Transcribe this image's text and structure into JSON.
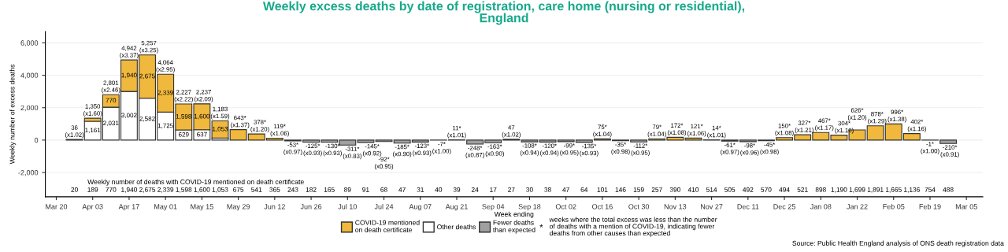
{
  "chart_data": {
    "type": "bar",
    "stacked": true,
    "title": "Weekly excess deaths by date of registration, care home (nursing or residential),\nEngland",
    "xlabel": "Week ending",
    "ylabel": "Weekly number of excess deaths",
    "categories": [
      "Mar 20",
      null,
      "Apr 03",
      null,
      "Apr 17",
      null,
      "May 01",
      null,
      "May 15",
      null,
      "May 29",
      null,
      "Jun 12",
      null,
      "Jun 26",
      null,
      "Jul 10",
      null,
      "Jul 24",
      null,
      "Aug 07",
      null,
      "Aug 21",
      null,
      "Sep 04",
      null,
      "Sep 18",
      null,
      "Oct 02",
      null,
      "Oct 16",
      null,
      "Oct 30",
      null,
      "Nov 13",
      null,
      "Nov 27",
      null,
      "Dec 11",
      null,
      "Dec 25",
      null,
      "Jan 08",
      null,
      "Jan 22",
      null,
      "Feb 05",
      null,
      "Feb 19",
      null,
      "Mar 05"
    ],
    "series": [
      {
        "name": "Other deaths",
        "color": "#ffffff",
        "values": [
          null,
          16,
          1161,
          2031,
          3002,
          2582,
          1725,
          629,
          637,
          130,
          null,
          null,
          null,
          null,
          null,
          null,
          null,
          null,
          null,
          null,
          null,
          null,
          null,
          null,
          null,
          20,
          null,
          null,
          null,
          null,
          null,
          null,
          null,
          null,
          null,
          null,
          null,
          null,
          null,
          null,
          null,
          null,
          null,
          null,
          null,
          null,
          null,
          null,
          null,
          null,
          null
        ],
        "value_labels": [
          null,
          null,
          "1,161",
          "2,031",
          "3,002",
          "2,582",
          "1,725",
          "629",
          "637",
          null,
          null,
          null,
          null,
          null,
          null,
          null,
          null,
          null,
          null,
          null,
          null,
          null,
          null,
          null,
          null,
          null,
          null,
          null,
          null,
          null,
          null,
          null,
          null,
          null,
          null,
          null,
          null,
          null,
          null,
          null,
          null,
          null,
          null,
          null,
          null,
          null,
          null,
          null,
          null,
          null,
          null
        ]
      },
      {
        "name": "COVID-19 mentioned\non death certificate",
        "color": "#f0b83c",
        "values": [
          null,
          20,
          189,
          770,
          1940,
          2675,
          2339,
          1598,
          1600,
          1053,
          643,
          378,
          119,
          null,
          null,
          null,
          null,
          null,
          null,
          null,
          null,
          null,
          11,
          null,
          null,
          27,
          null,
          null,
          null,
          null,
          75,
          null,
          null,
          79,
          172,
          121,
          14,
          null,
          null,
          null,
          150,
          327,
          467,
          304,
          626,
          878,
          996,
          402,
          null,
          null,
          null
        ],
        "value_labels": [
          null,
          null,
          null,
          "770",
          "1,940",
          "2,675",
          "2,339",
          "1,598",
          "1,600",
          "1,053",
          null,
          null,
          null,
          null,
          null,
          null,
          null,
          null,
          null,
          null,
          null,
          null,
          null,
          null,
          null,
          null,
          null,
          null,
          null,
          null,
          null,
          null,
          null,
          null,
          null,
          null,
          null,
          null,
          null,
          null,
          null,
          null,
          null,
          null,
          null,
          null,
          null,
          null,
          null,
          null,
          null
        ]
      },
      {
        "name": "Fewer deaths\nthan expected",
        "color": "#a0a0a0",
        "values": [
          null,
          null,
          null,
          null,
          null,
          null,
          null,
          null,
          null,
          null,
          null,
          null,
          null,
          -53,
          -125,
          -130,
          -311,
          -145,
          -92,
          -185,
          -123,
          -7,
          null,
          -248,
          -163,
          null,
          -108,
          -120,
          -99,
          -135,
          null,
          -35,
          -112,
          null,
          null,
          null,
          null,
          -61,
          -98,
          -45,
          null,
          null,
          null,
          null,
          null,
          null,
          null,
          null,
          -1,
          -210,
          null
        ]
      }
    ],
    "totals": [
      null,
      "36\n(x1.02)",
      "1,350\n(x1.60)",
      "2,801\n(x2.46)",
      "4,942\n(x3.37)",
      "5,257\n(x3.25)",
      "4,064\n(x2.95)",
      "2,227\n(x2.22)",
      "2,237\n(x2.09)",
      "1,183\n(x1.59)",
      "643*\n(x1.37)",
      "378*\n(x1.20)",
      "119*\n(x1.06)",
      "-53*\n(x0.97)",
      "-125*\n(x0.93)",
      "-130*\n(x0.93)",
      "-311*\n(x0.83)",
      "-145*\n(x0.92)",
      "-92*\n(x0.95)",
      "-185*\n(x0.90)",
      "-123*\n(x0.93)",
      "-7*\n(x1.00)",
      "11*\n(x1.01)",
      "-248*\n(x0.87)",
      "-163*\n(x0.90)",
      "47\n(x1.02)",
      "-108*\n(x0.94)",
      "-120*\n(x0.94)",
      "-99*\n(x0.95)",
      "-135*\n(x0.93)",
      "75*\n(x1.04)",
      "-35*\n(x0.98)",
      "-112*\n(x0.95)",
      "79*\n(x1.04)",
      "172*\n(x1.08)",
      "121*\n(x1.06)",
      "14*\n(x1.01)",
      "-61*\n(x0.97)",
      "-98*\n(x0.96)",
      "-45*\n(x0.98)",
      "150*\n(x1.08)",
      "327*\n(x1.21)",
      "467*\n(x1.17)",
      "304*\n(x1.10)",
      "626*\n(x1.20)",
      "878*\n(x1.29)",
      "996*\n(x1.38)",
      "402*\n(x1.16)",
      "-1*\n(x1.00)",
      "-210*\n(x0.91)",
      null
    ],
    "ylim": [
      -3500,
      6700
    ],
    "yticks": [
      {
        "value": -2000,
        "label": "-2,000"
      },
      {
        "value": 0,
        "label": "0"
      },
      {
        "value": 2000,
        "label": "2,000"
      },
      {
        "value": 4000,
        "label": "4,000"
      },
      {
        "value": 6000,
        "label": "6,000"
      }
    ],
    "grid": "y",
    "legend": "bottom",
    "annotations": [
      "Weekly number of deaths with COVID-19 mentioned on death certificate",
      "*",
      "weeks where the total excess was less than the number\nof deaths with a mention of COVID-19, indicating fewer\ndeaths from other causes than expected",
      "Source: Public Health England analysis of ONS death registration data",
      "20",
      "189",
      "770",
      "1,940",
      "2,675",
      "2,339",
      "1,598",
      "1,600",
      "1,053",
      "675",
      "541",
      "365",
      "243",
      "182",
      "165",
      "89",
      "91",
      "68",
      "47",
      "31",
      "40",
      "39",
      "24",
      "17",
      "27",
      "30",
      "38",
      "47",
      "64",
      "101",
      "146",
      "159",
      "257",
      "390",
      "410",
      "514",
      "505",
      "492",
      "570",
      "494",
      "521",
      "898",
      "1,190",
      "1,699",
      "1,891",
      "1,665",
      "1,136",
      "754",
      "488"
    ]
  }
}
